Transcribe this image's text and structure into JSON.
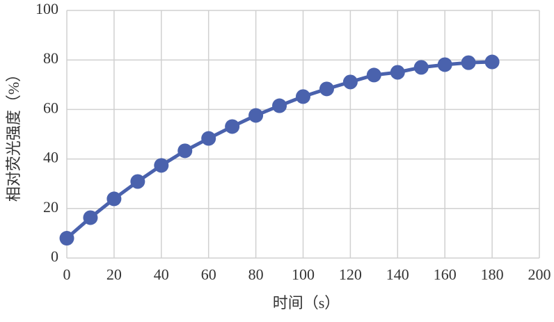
{
  "chart_data": {
    "type": "line",
    "x_label": "时间（s）",
    "y_label": "相对荧光强度（%）",
    "x": [
      0,
      10,
      20,
      30,
      40,
      50,
      60,
      70,
      80,
      90,
      100,
      110,
      120,
      130,
      140,
      150,
      160,
      170,
      180
    ],
    "series": [
      {
        "color": "#4a62ad",
        "values": [
          8,
          16.3,
          23.9,
          30.9,
          37.4,
          43.3,
          48.3,
          53.1,
          57.6,
          61.5,
          65.2,
          68.3,
          71.1,
          73.9,
          75,
          77,
          78.1,
          78.9,
          79.2
        ]
      }
    ],
    "xlim": [
      0,
      200
    ],
    "xticks": [
      0,
      20,
      40,
      60,
      80,
      100,
      120,
      140,
      160,
      180,
      200
    ],
    "ylim": [
      0,
      100
    ],
    "yticks": [
      0,
      20,
      40,
      60,
      80,
      100
    ],
    "grid": true
  }
}
